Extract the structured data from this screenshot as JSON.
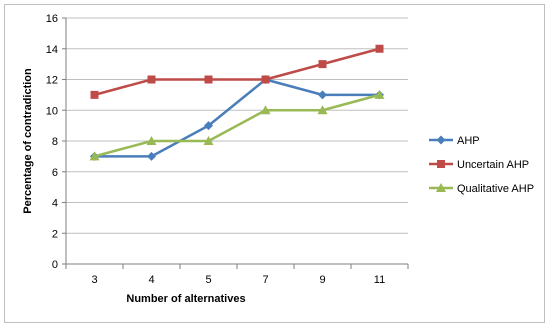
{
  "chart_data": {
    "type": "line",
    "title": "",
    "xlabel": "Number of alternatives",
    "ylabel": "Percentage of contradiction",
    "categories": [
      "3",
      "4",
      "5",
      "7",
      "9",
      "11"
    ],
    "ylim": [
      0,
      16
    ],
    "yticks": [
      "0",
      "2",
      "4",
      "6",
      "8",
      "10",
      "12",
      "14",
      "16"
    ],
    "grid": "horizontal",
    "legend_position": "right",
    "series": [
      {
        "name": "AHP",
        "values": [
          7,
          7,
          9,
          12,
          11,
          11
        ],
        "color": "#4a7ebb",
        "marker": "diamond"
      },
      {
        "name": "Uncertain AHP",
        "values": [
          11,
          12,
          12,
          12,
          13,
          14
        ],
        "color": "#be4b48",
        "marker": "square"
      },
      {
        "name": "Qualitative AHP",
        "values": [
          7,
          8,
          8,
          10,
          10,
          11
        ],
        "color": "#98b954",
        "marker": "triangle"
      }
    ]
  }
}
